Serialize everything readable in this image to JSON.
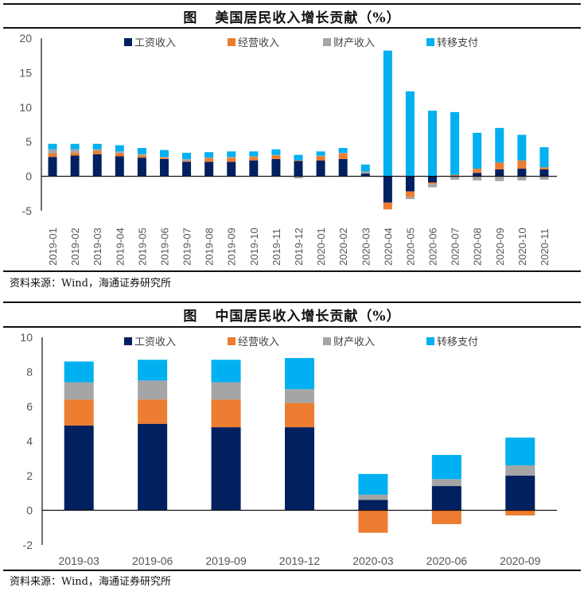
{
  "colors": {
    "wage": "#002060",
    "business": "#ED7D31",
    "property": "#A5A5A5",
    "transfer": "#00B0F0"
  },
  "chart_data": [
    {
      "type": "bar",
      "stacked": true,
      "figure_label": "图",
      "title": "美国居民收入增长贡献（%）",
      "xlabel": "",
      "ylabel": "",
      "ylim": [
        -5,
        20
      ],
      "yticks": [
        "20",
        "15",
        "10",
        "5",
        "0",
        "-5"
      ],
      "ytick_values": [
        20,
        15,
        10,
        5,
        0,
        -5
      ],
      "legend_position": "top",
      "categories": [
        "2019-01",
        "2019-02",
        "2019-03",
        "2019-04",
        "2019-05",
        "2019-06",
        "2019-07",
        "2019-08",
        "2019-09",
        "2019-10",
        "2019-11",
        "2019-12",
        "2020-01",
        "2020-02",
        "2020-03",
        "2020-04",
        "2020-05",
        "2020-06",
        "2020-07",
        "2020-08",
        "2020-09",
        "2020-10",
        "2020-11"
      ],
      "series": [
        {
          "key": "wage",
          "name": "工资收入",
          "values": [
            2.8,
            3.0,
            3.2,
            2.9,
            2.7,
            2.5,
            2.1,
            2.1,
            2.1,
            2.3,
            2.5,
            2.2,
            2.3,
            2.5,
            0.4,
            -3.8,
            -2.2,
            -0.9,
            0.0,
            0.5,
            1.0,
            1.1,
            1.0
          ]
        },
        {
          "key": "business",
          "name": "经营收入",
          "values": [
            0.5,
            0.4,
            0.5,
            0.4,
            0.3,
            0.2,
            0.1,
            0.5,
            0.6,
            0.5,
            0.5,
            0.1,
            0.6,
            0.8,
            0.0,
            -1.0,
            -0.8,
            -0.2,
            0.2,
            0.6,
            1.0,
            1.2,
            0.3
          ]
        },
        {
          "key": "property",
          "name": "财产收入",
          "values": [
            0.6,
            0.5,
            0.2,
            0.3,
            0.2,
            0.1,
            0.3,
            0.1,
            0.1,
            0.1,
            0.1,
            -0.3,
            0.1,
            0.1,
            0.3,
            0.0,
            -0.3,
            -0.5,
            -0.5,
            -0.6,
            -0.7,
            -0.6,
            -0.5
          ]
        },
        {
          "key": "transfer",
          "name": "转移支付",
          "values": [
            0.8,
            0.8,
            0.8,
            0.9,
            0.9,
            1.0,
            0.9,
            0.8,
            0.8,
            0.7,
            0.8,
            0.8,
            0.6,
            0.7,
            1.0,
            18.2,
            12.3,
            9.5,
            9.1,
            5.2,
            5.0,
            3.7,
            2.9
          ]
        }
      ],
      "source": "资料来源：Wind，海通证券研究所"
    },
    {
      "type": "bar",
      "stacked": true,
      "figure_label": "图",
      "title": "中国居民收入增长贡献（%）",
      "xlabel": "",
      "ylabel": "",
      "ylim": [
        -2,
        10
      ],
      "yticks": [
        "10",
        "8",
        "6",
        "4",
        "2",
        "0",
        "-2"
      ],
      "ytick_values": [
        10,
        8,
        6,
        4,
        2,
        0,
        -2
      ],
      "legend_position": "top",
      "categories": [
        "2019-03",
        "2019-06",
        "2019-09",
        "2019-12",
        "2020-03",
        "2020-06",
        "2020-09"
      ],
      "series": [
        {
          "key": "wage",
          "name": "工资收入",
          "values": [
            4.9,
            5.0,
            4.8,
            4.8,
            0.6,
            1.4,
            2.0
          ]
        },
        {
          "key": "business",
          "name": "经营收入",
          "values": [
            1.5,
            1.4,
            1.6,
            1.4,
            -1.3,
            -0.8,
            -0.3
          ]
        },
        {
          "key": "property",
          "name": "财产收入",
          "values": [
            1.0,
            1.1,
            1.0,
            0.8,
            0.3,
            0.4,
            0.6
          ]
        },
        {
          "key": "transfer",
          "name": "转移支付",
          "values": [
            1.2,
            1.2,
            1.3,
            1.8,
            1.2,
            1.4,
            1.6
          ]
        }
      ],
      "source": "资料来源：Wind，海通证券研究所"
    }
  ]
}
